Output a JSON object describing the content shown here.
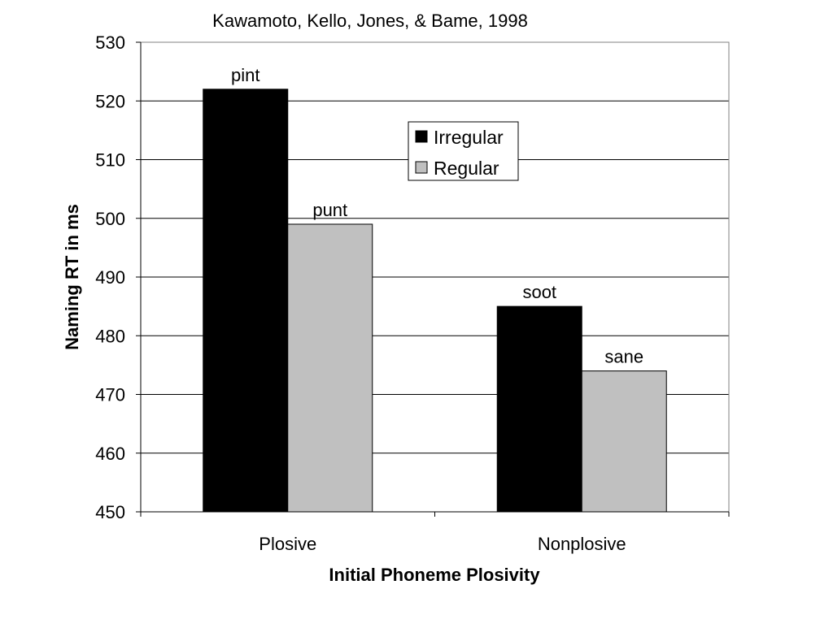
{
  "chart_data": {
    "type": "bar",
    "title": "Kawamoto, Kello, Jones, & Bame, 1998",
    "xlabel": "Initial Phoneme Plosivity",
    "ylabel": "Naming RT in ms",
    "categories": [
      "Plosive",
      "Nonplosive"
    ],
    "ylim": [
      450,
      530
    ],
    "yticks": [
      450,
      460,
      470,
      480,
      490,
      500,
      510,
      520,
      530
    ],
    "grid": true,
    "legend_position": "top-center",
    "series": [
      {
        "name": "Irregular",
        "color": "#000000",
        "values": [
          522,
          485
        ],
        "labels": [
          "pint",
          "soot"
        ]
      },
      {
        "name": "Regular",
        "color": "#c0c0c0",
        "values": [
          499,
          474
        ],
        "labels": [
          "punt",
          "sane"
        ]
      }
    ]
  }
}
